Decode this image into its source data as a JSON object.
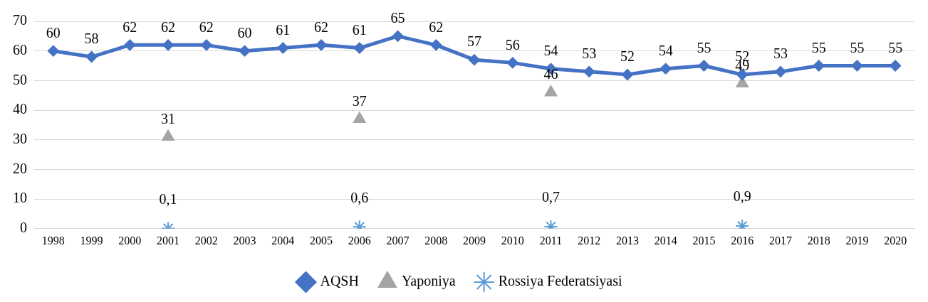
{
  "chart_data": {
    "type": "line",
    "categories": [
      "1998",
      "1999",
      "2000",
      "2001",
      "2002",
      "2003",
      "2004",
      "2005",
      "2006",
      "2007",
      "2008",
      "2009",
      "2010",
      "2011",
      "2012",
      "2013",
      "2014",
      "2015",
      "2016",
      "2017",
      "2018",
      "2019",
      "2020"
    ],
    "series": [
      {
        "name": "AQSH",
        "color": "#4472c4",
        "marker": "diamond",
        "values": [
          60,
          58,
          62,
          62,
          62,
          60,
          61,
          62,
          61,
          65,
          62,
          57,
          56,
          54,
          53,
          52,
          54,
          55,
          52,
          53,
          55,
          55,
          55
        ],
        "value_labels": [
          "60",
          "58",
          "62",
          "62",
          "62",
          "60",
          "61",
          "62",
          "61",
          "65",
          "62",
          "57",
          "56",
          "54",
          "53",
          "52",
          "54",
          "55",
          "52",
          "53",
          "55",
          "55",
          "55"
        ]
      },
      {
        "name": "Yaponiya",
        "type": "scatter",
        "color": "#a5a5a5",
        "marker": "triangle",
        "values": [
          null,
          null,
          null,
          31,
          null,
          null,
          null,
          null,
          37,
          null,
          null,
          null,
          null,
          46,
          null,
          null,
          null,
          null,
          49,
          null,
          null,
          null,
          null
        ],
        "value_labels": [
          null,
          null,
          null,
          "31",
          null,
          null,
          null,
          null,
          "37",
          null,
          null,
          null,
          null,
          "46",
          null,
          null,
          null,
          null,
          "49",
          null,
          null,
          null,
          null
        ]
      },
      {
        "name": "Rossiya Federatsiyasi",
        "type": "scatter",
        "color": "#5b9bd5",
        "marker": "cross",
        "values": [
          null,
          null,
          null,
          0.1,
          null,
          null,
          null,
          null,
          0.6,
          null,
          null,
          null,
          null,
          0.7,
          null,
          null,
          null,
          null,
          0.9,
          null,
          null,
          null,
          null
        ],
        "value_labels": [
          null,
          null,
          null,
          "0,1",
          null,
          null,
          null,
          null,
          "0,6",
          null,
          null,
          null,
          null,
          "0,7",
          null,
          null,
          null,
          null,
          "0,9",
          null,
          null,
          null,
          null
        ]
      }
    ],
    "ylim": [
      0,
      70
    ],
    "yticks": [
      0,
      10,
      20,
      30,
      40,
      50,
      60,
      70
    ],
    "grid": "y",
    "legend": "bottom"
  }
}
